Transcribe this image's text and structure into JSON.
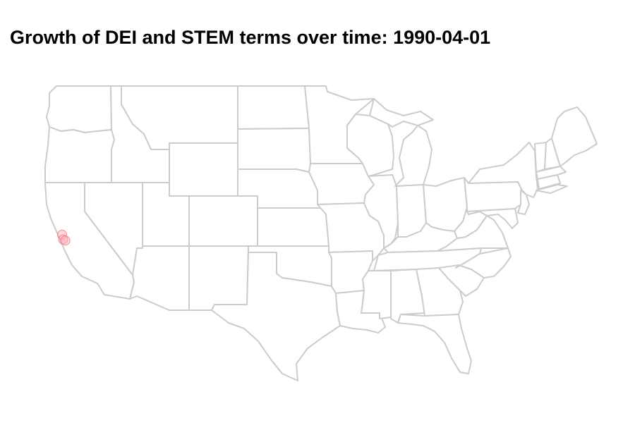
{
  "title": "Growth of DEI and STEM terms over time: 1990-04-01",
  "map": {
    "region": "contiguous-united-states",
    "boundary_color": "#cccccc",
    "fill_color": "#ffffff",
    "marker_color": "#f4a0a8",
    "markers": [
      {
        "name": "bay-area-marker-1",
        "lon": -122.27,
        "lat": 37.87
      },
      {
        "name": "bay-area-marker-2",
        "lon": -122.15,
        "lat": 37.44
      },
      {
        "name": "bay-area-marker-3",
        "lon": -121.89,
        "lat": 37.34
      }
    ]
  }
}
